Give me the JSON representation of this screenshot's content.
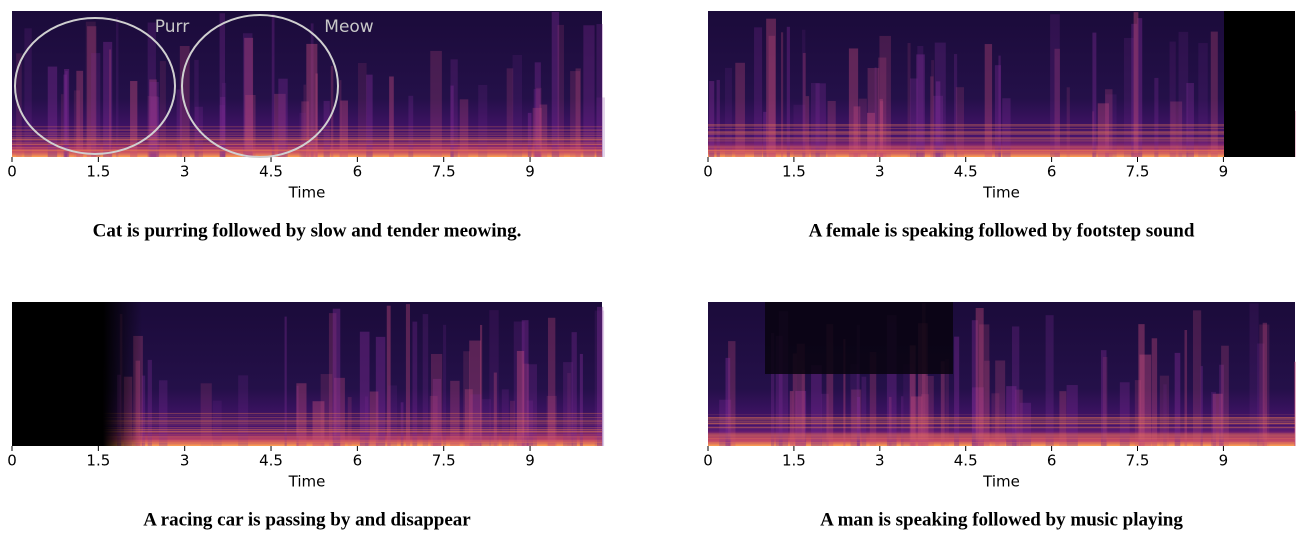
{
  "chart_data": [
    {
      "type": "spectrogram",
      "xlabel": "Time",
      "xlim": [
        0,
        10.25
      ],
      "xticks": [
        0,
        1.5,
        3,
        4.5,
        6,
        7.5,
        9
      ],
      "caption": "Cat is purring followed by slow and tender meowing.",
      "annotations": [
        "Purr",
        "Meow"
      ]
    },
    {
      "type": "spectrogram",
      "xlabel": "Time",
      "xlim": [
        0,
        10.25
      ],
      "xticks": [
        0,
        1.5,
        3,
        4.5,
        6,
        7.5,
        9
      ],
      "caption": "A female is speaking followed by footstep sound"
    },
    {
      "type": "spectrogram",
      "xlabel": "Time",
      "xlim": [
        0,
        10.25
      ],
      "xticks": [
        0,
        1.5,
        3,
        4.5,
        6,
        7.5,
        9
      ],
      "caption": "A racing car is passing by and disappear"
    },
    {
      "type": "spectrogram",
      "xlabel": "Time",
      "xlim": [
        0,
        10.25
      ],
      "xticks": [
        0,
        1.5,
        3,
        4.5,
        6,
        7.5,
        9
      ],
      "caption": "A man is speaking followed by music playing"
    }
  ]
}
